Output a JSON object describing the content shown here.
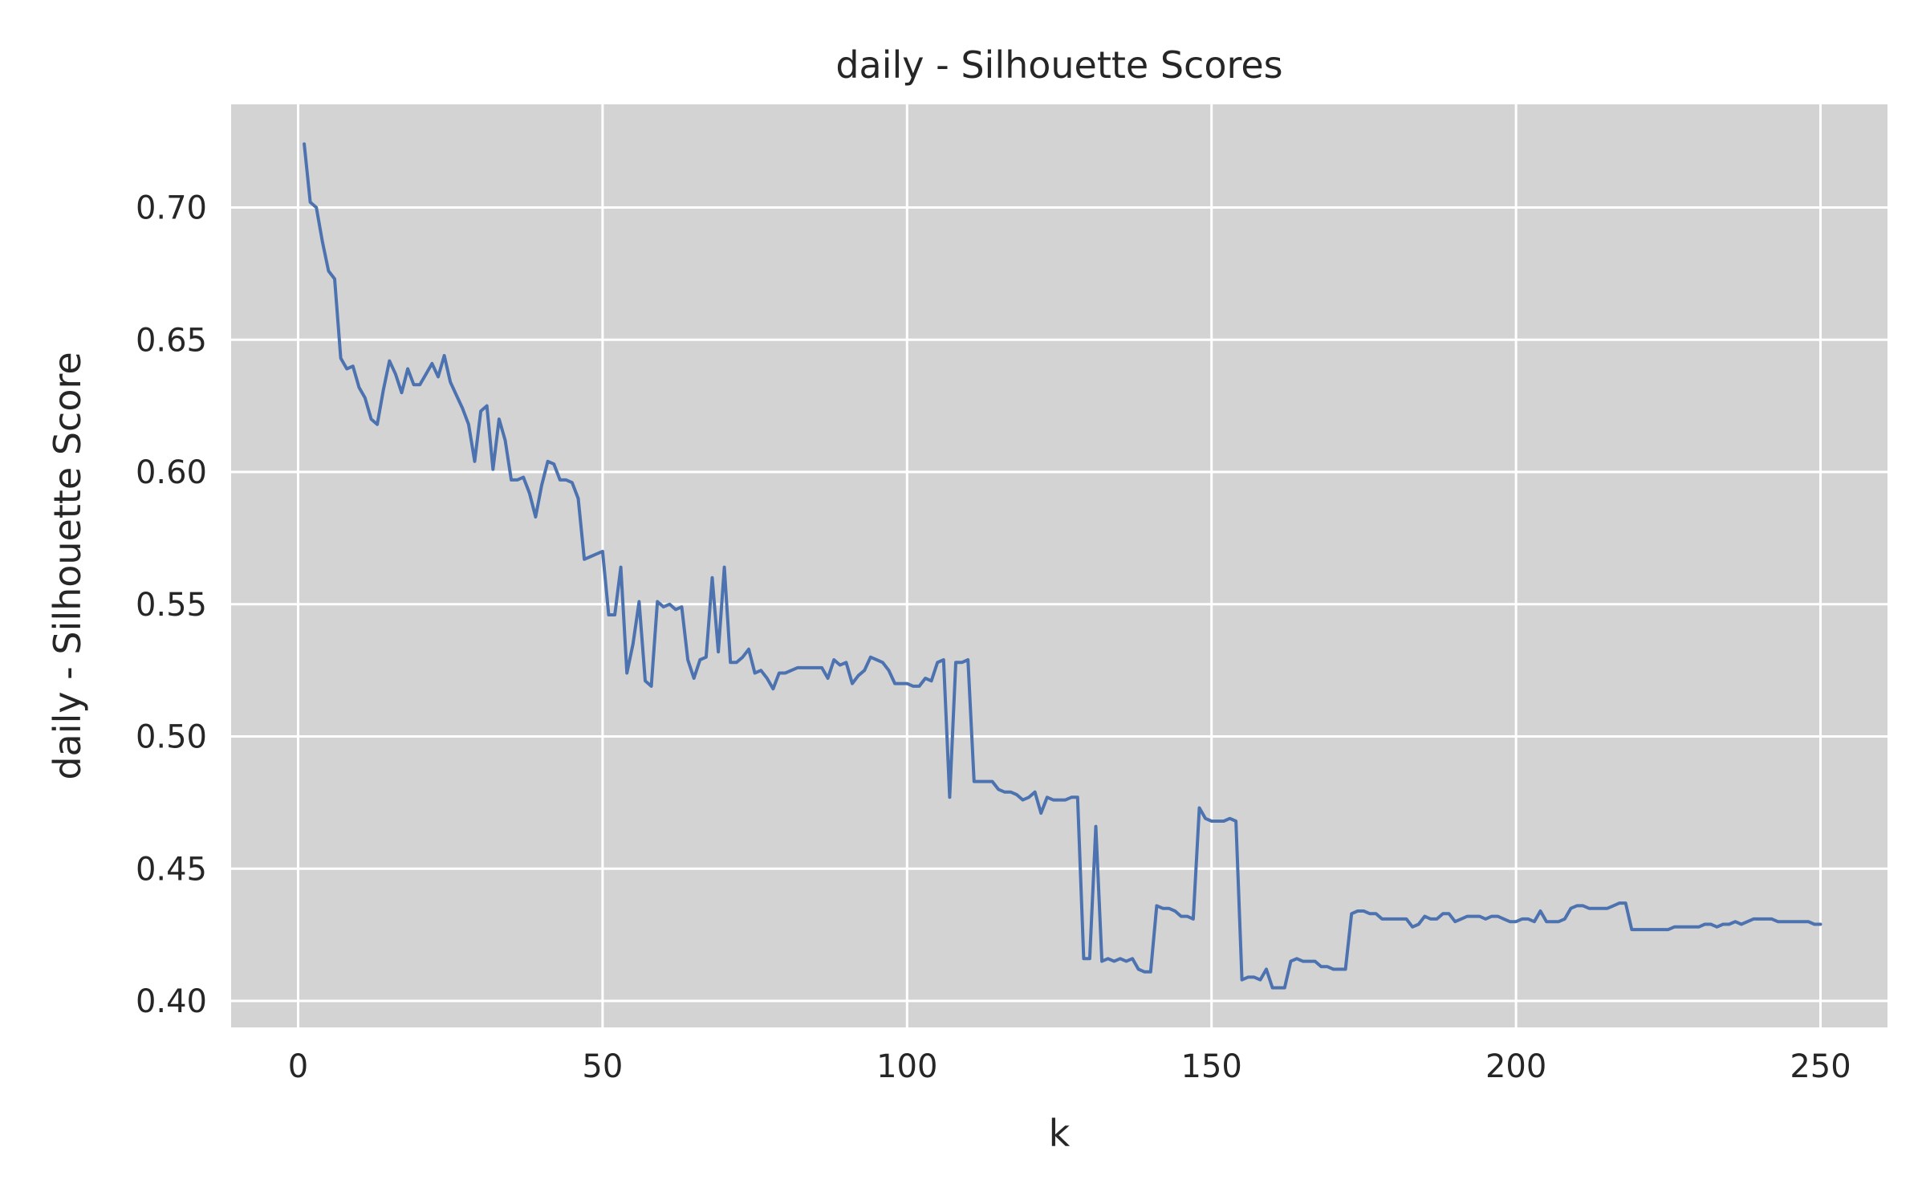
{
  "chart_data": {
    "type": "line",
    "title": "daily - Silhouette Scores",
    "xlabel": "k",
    "ylabel": "daily - Silhouette Score",
    "xlim": [
      -11,
      261
    ],
    "ylim": [
      0.39,
      0.739
    ],
    "xticks": [
      0,
      50,
      100,
      150,
      200,
      250
    ],
    "yticks": [
      0.4,
      0.45,
      0.5,
      0.55,
      0.6,
      0.65,
      0.7
    ],
    "grid": true,
    "plot_background": "#d3d3d3",
    "series": [
      {
        "name": "",
        "color": "#4c72b0",
        "points": [
          [
            1,
            0.724
          ],
          [
            2,
            0.702
          ],
          [
            3,
            0.7
          ],
          [
            4,
            0.687
          ],
          [
            5,
            0.676
          ],
          [
            6,
            0.673
          ],
          [
            7,
            0.643
          ],
          [
            8,
            0.639
          ],
          [
            9,
            0.64
          ],
          [
            10,
            0.632
          ],
          [
            11,
            0.628
          ],
          [
            12,
            0.62
          ],
          [
            13,
            0.618
          ],
          [
            14,
            0.631
          ],
          [
            15,
            0.642
          ],
          [
            16,
            0.637
          ],
          [
            17,
            0.63
          ],
          [
            18,
            0.639
          ],
          [
            19,
            0.633
          ],
          [
            20,
            0.633
          ],
          [
            21,
            0.637
          ],
          [
            22,
            0.641
          ],
          [
            23,
            0.636
          ],
          [
            24,
            0.644
          ],
          [
            25,
            0.634
          ],
          [
            26,
            0.629
          ],
          [
            27,
            0.624
          ],
          [
            28,
            0.618
          ],
          [
            29,
            0.604
          ],
          [
            30,
            0.623
          ],
          [
            31,
            0.625
          ],
          [
            32,
            0.601
          ],
          [
            33,
            0.62
          ],
          [
            34,
            0.612
          ],
          [
            35,
            0.597
          ],
          [
            36,
            0.597
          ],
          [
            37,
            0.598
          ],
          [
            38,
            0.592
          ],
          [
            39,
            0.583
          ],
          [
            40,
            0.595
          ],
          [
            41,
            0.604
          ],
          [
            42,
            0.603
          ],
          [
            43,
            0.597
          ],
          [
            44,
            0.597
          ],
          [
            45,
            0.596
          ],
          [
            46,
            0.59
          ],
          [
            47,
            0.567
          ],
          [
            48,
            0.568
          ],
          [
            49,
            0.569
          ],
          [
            50,
            0.57
          ],
          [
            51,
            0.546
          ],
          [
            52,
            0.546
          ],
          [
            53,
            0.564
          ],
          [
            54,
            0.524
          ],
          [
            55,
            0.535
          ],
          [
            56,
            0.551
          ],
          [
            57,
            0.521
          ],
          [
            58,
            0.519
          ],
          [
            59,
            0.551
          ],
          [
            60,
            0.549
          ],
          [
            61,
            0.55
          ],
          [
            62,
            0.548
          ],
          [
            63,
            0.549
          ],
          [
            64,
            0.529
          ],
          [
            65,
            0.522
          ],
          [
            66,
            0.529
          ],
          [
            67,
            0.53
          ],
          [
            68,
            0.56
          ],
          [
            69,
            0.532
          ],
          [
            70,
            0.564
          ],
          [
            71,
            0.528
          ],
          [
            72,
            0.528
          ],
          [
            73,
            0.53
          ],
          [
            74,
            0.533
          ],
          [
            75,
            0.524
          ],
          [
            76,
            0.525
          ],
          [
            77,
            0.522
          ],
          [
            78,
            0.518
          ],
          [
            79,
            0.524
          ],
          [
            80,
            0.524
          ],
          [
            81,
            0.525
          ],
          [
            82,
            0.526
          ],
          [
            83,
            0.526
          ],
          [
            84,
            0.526
          ],
          [
            85,
            0.526
          ],
          [
            86,
            0.526
          ],
          [
            87,
            0.522
          ],
          [
            88,
            0.529
          ],
          [
            89,
            0.527
          ],
          [
            90,
            0.528
          ],
          [
            91,
            0.52
          ],
          [
            92,
            0.523
          ],
          [
            93,
            0.525
          ],
          [
            94,
            0.53
          ],
          [
            95,
            0.529
          ],
          [
            96,
            0.528
          ],
          [
            97,
            0.525
          ],
          [
            98,
            0.52
          ],
          [
            99,
            0.52
          ],
          [
            100,
            0.52
          ],
          [
            101,
            0.519
          ],
          [
            102,
            0.519
          ],
          [
            103,
            0.522
          ],
          [
            104,
            0.521
          ],
          [
            105,
            0.528
          ],
          [
            106,
            0.529
          ],
          [
            107,
            0.477
          ],
          [
            108,
            0.528
          ],
          [
            109,
            0.528
          ],
          [
            110,
            0.529
          ],
          [
            111,
            0.483
          ],
          [
            112,
            0.483
          ],
          [
            113,
            0.483
          ],
          [
            114,
            0.483
          ],
          [
            115,
            0.48
          ],
          [
            116,
            0.479
          ],
          [
            117,
            0.479
          ],
          [
            118,
            0.478
          ],
          [
            119,
            0.476
          ],
          [
            120,
            0.477
          ],
          [
            121,
            0.479
          ],
          [
            122,
            0.471
          ],
          [
            123,
            0.477
          ],
          [
            124,
            0.476
          ],
          [
            125,
            0.476
          ],
          [
            126,
            0.476
          ],
          [
            127,
            0.477
          ],
          [
            128,
            0.477
          ],
          [
            129,
            0.416
          ],
          [
            130,
            0.416
          ],
          [
            131,
            0.466
          ],
          [
            132,
            0.415
          ],
          [
            133,
            0.416
          ],
          [
            134,
            0.415
          ],
          [
            135,
            0.416
          ],
          [
            136,
            0.415
          ],
          [
            137,
            0.416
          ],
          [
            138,
            0.412
          ],
          [
            139,
            0.411
          ],
          [
            140,
            0.411
          ],
          [
            141,
            0.436
          ],
          [
            142,
            0.435
          ],
          [
            143,
            0.435
          ],
          [
            144,
            0.434
          ],
          [
            145,
            0.432
          ],
          [
            146,
            0.432
          ],
          [
            147,
            0.431
          ],
          [
            148,
            0.473
          ],
          [
            149,
            0.469
          ],
          [
            150,
            0.468
          ],
          [
            151,
            0.468
          ],
          [
            152,
            0.468
          ],
          [
            153,
            0.469
          ],
          [
            154,
            0.468
          ],
          [
            155,
            0.408
          ],
          [
            156,
            0.409
          ],
          [
            157,
            0.409
          ],
          [
            158,
            0.408
          ],
          [
            159,
            0.412
          ],
          [
            160,
            0.405
          ],
          [
            161,
            0.405
          ],
          [
            162,
            0.405
          ],
          [
            163,
            0.415
          ],
          [
            164,
            0.416
          ],
          [
            165,
            0.415
          ],
          [
            166,
            0.415
          ],
          [
            167,
            0.415
          ],
          [
            168,
            0.413
          ],
          [
            169,
            0.413
          ],
          [
            170,
            0.412
          ],
          [
            171,
            0.412
          ],
          [
            172,
            0.412
          ],
          [
            173,
            0.433
          ],
          [
            174,
            0.434
          ],
          [
            175,
            0.434
          ],
          [
            176,
            0.433
          ],
          [
            177,
            0.433
          ],
          [
            178,
            0.431
          ],
          [
            179,
            0.431
          ],
          [
            180,
            0.431
          ],
          [
            181,
            0.431
          ],
          [
            182,
            0.431
          ],
          [
            183,
            0.428
          ],
          [
            184,
            0.429
          ],
          [
            185,
            0.432
          ],
          [
            186,
            0.431
          ],
          [
            187,
            0.431
          ],
          [
            188,
            0.433
          ],
          [
            189,
            0.433
          ],
          [
            190,
            0.43
          ],
          [
            191,
            0.431
          ],
          [
            192,
            0.432
          ],
          [
            193,
            0.432
          ],
          [
            194,
            0.432
          ],
          [
            195,
            0.431
          ],
          [
            196,
            0.432
          ],
          [
            197,
            0.432
          ],
          [
            198,
            0.431
          ],
          [
            199,
            0.43
          ],
          [
            200,
            0.43
          ],
          [
            201,
            0.431
          ],
          [
            202,
            0.431
          ],
          [
            203,
            0.43
          ],
          [
            204,
            0.434
          ],
          [
            205,
            0.43
          ],
          [
            206,
            0.43
          ],
          [
            207,
            0.43
          ],
          [
            208,
            0.431
          ],
          [
            209,
            0.435
          ],
          [
            210,
            0.436
          ],
          [
            211,
            0.436
          ],
          [
            212,
            0.435
          ],
          [
            213,
            0.435
          ],
          [
            214,
            0.435
          ],
          [
            215,
            0.435
          ],
          [
            216,
            0.436
          ],
          [
            217,
            0.437
          ],
          [
            218,
            0.437
          ],
          [
            219,
            0.427
          ],
          [
            220,
            0.427
          ],
          [
            221,
            0.427
          ],
          [
            222,
            0.427
          ],
          [
            223,
            0.427
          ],
          [
            224,
            0.427
          ],
          [
            225,
            0.427
          ],
          [
            226,
            0.428
          ],
          [
            227,
            0.428
          ],
          [
            228,
            0.428
          ],
          [
            229,
            0.428
          ],
          [
            230,
            0.428
          ],
          [
            231,
            0.429
          ],
          [
            232,
            0.429
          ],
          [
            233,
            0.428
          ],
          [
            234,
            0.429
          ],
          [
            235,
            0.429
          ],
          [
            236,
            0.43
          ],
          [
            237,
            0.429
          ],
          [
            238,
            0.43
          ],
          [
            239,
            0.431
          ],
          [
            240,
            0.431
          ],
          [
            241,
            0.431
          ],
          [
            242,
            0.431
          ],
          [
            243,
            0.43
          ],
          [
            244,
            0.43
          ],
          [
            245,
            0.43
          ],
          [
            246,
            0.43
          ],
          [
            247,
            0.43
          ],
          [
            248,
            0.43
          ],
          [
            249,
            0.429
          ],
          [
            250,
            0.429
          ]
        ]
      }
    ]
  }
}
